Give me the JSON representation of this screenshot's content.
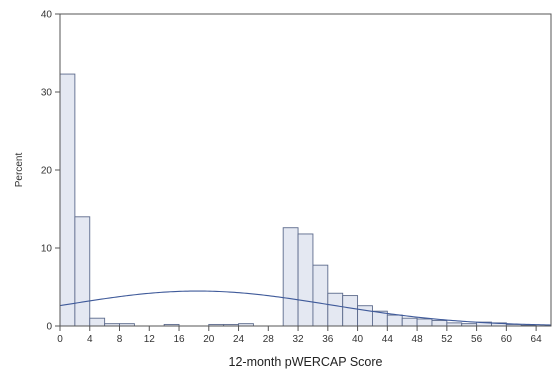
{
  "chart_data": {
    "type": "bar",
    "subtype": "histogram",
    "xlabel": "12-month pWERCAP Score",
    "ylabel": "Percent",
    "xlim": [
      0,
      66
    ],
    "ylim": [
      0,
      40
    ],
    "bin_width": 2,
    "x_ticks": [
      0,
      4,
      8,
      12,
      16,
      20,
      24,
      28,
      32,
      36,
      40,
      44,
      48,
      52,
      56,
      60,
      64
    ],
    "y_ticks": [
      0,
      10,
      20,
      30,
      40
    ],
    "bins": [
      {
        "start": 0,
        "end": 2,
        "value": 32.3
      },
      {
        "start": 2,
        "end": 4,
        "value": 14.0
      },
      {
        "start": 4,
        "end": 6,
        "value": 1.0
      },
      {
        "start": 6,
        "end": 8,
        "value": 0.3
      },
      {
        "start": 8,
        "end": 10,
        "value": 0.3
      },
      {
        "start": 14,
        "end": 16,
        "value": 0.2
      },
      {
        "start": 20,
        "end": 22,
        "value": 0.2
      },
      {
        "start": 22,
        "end": 24,
        "value": 0.2
      },
      {
        "start": 24,
        "end": 26,
        "value": 0.3
      },
      {
        "start": 30,
        "end": 32,
        "value": 12.6
      },
      {
        "start": 32,
        "end": 34,
        "value": 11.8
      },
      {
        "start": 34,
        "end": 36,
        "value": 7.8
      },
      {
        "start": 36,
        "end": 38,
        "value": 4.2
      },
      {
        "start": 38,
        "end": 40,
        "value": 3.9
      },
      {
        "start": 40,
        "end": 42,
        "value": 2.6
      },
      {
        "start": 42,
        "end": 44,
        "value": 1.9
      },
      {
        "start": 44,
        "end": 46,
        "value": 1.4
      },
      {
        "start": 46,
        "end": 48,
        "value": 1.0
      },
      {
        "start": 48,
        "end": 50,
        "value": 0.9
      },
      {
        "start": 50,
        "end": 52,
        "value": 0.7
      },
      {
        "start": 52,
        "end": 54,
        "value": 0.4
      },
      {
        "start": 54,
        "end": 56,
        "value": 0.3
      },
      {
        "start": 56,
        "end": 58,
        "value": 0.5
      },
      {
        "start": 58,
        "end": 60,
        "value": 0.4
      },
      {
        "start": 60,
        "end": 62,
        "value": 0.2
      },
      {
        "start": 62,
        "end": 64,
        "value": 0.1
      }
    ],
    "normal_curve": {
      "mean": 18.5,
      "sd": 17.8
    },
    "colors": {
      "bar_fill": "#e4e8f2",
      "bar_stroke": "#5d6b8c",
      "curve": "#3f5a9a",
      "axis": "#555555"
    }
  }
}
